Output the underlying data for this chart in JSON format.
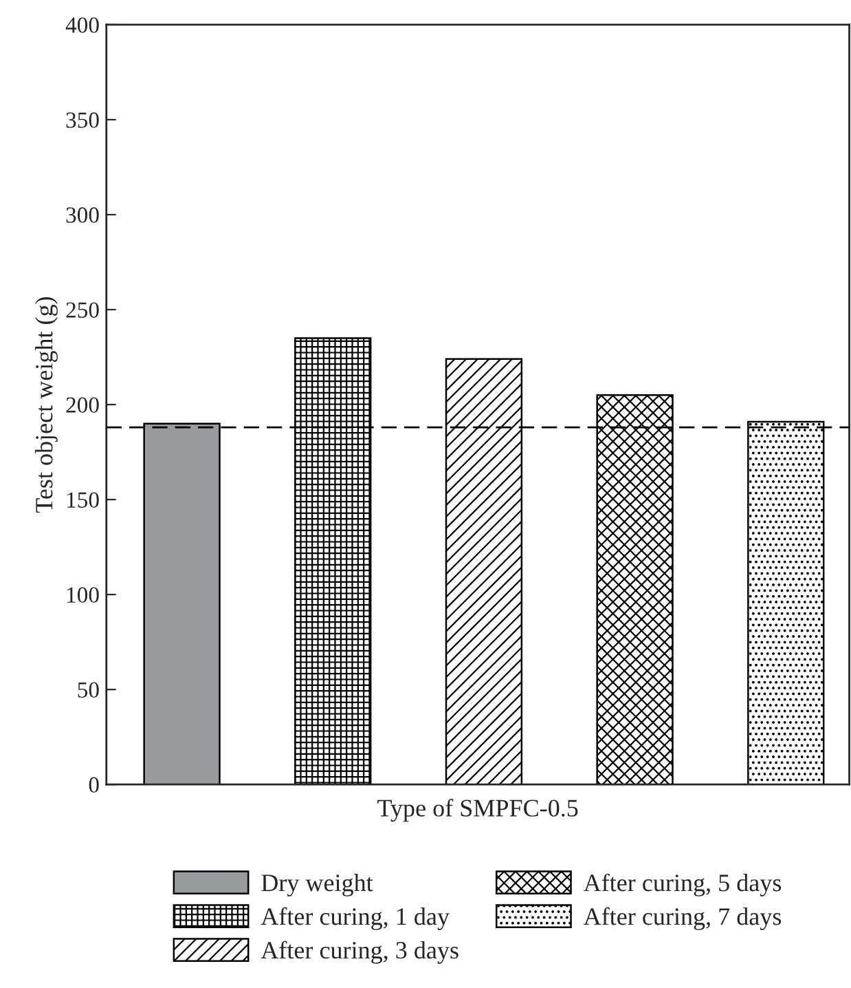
{
  "chart_data": {
    "type": "bar",
    "xlabel": "Type of SMPFC-0.5",
    "ylabel": "Test object weight (g)",
    "categories": [
      null,
      null,
      null,
      null,
      null
    ],
    "series": [
      {
        "name": "Dry weight",
        "color": "#999a9e",
        "values": [
          190,
          null,
          null,
          null,
          null
        ]
      },
      {
        "name": "After curing, 1 day",
        "color": "#000000",
        "values": [
          null,
          235,
          null,
          null,
          null
        ]
      },
      {
        "name": "After curing, 3 days",
        "color": "#000000",
        "values": [
          null,
          null,
          224,
          null,
          null
        ]
      },
      {
        "name": "After curing, 5 days",
        "color": "#000000",
        "values": [
          null,
          null,
          null,
          205,
          null
        ]
      },
      {
        "name": "After curing, 7 days",
        "color": "#000000",
        "values": [
          null,
          null,
          null,
          null,
          191
        ]
      }
    ],
    "ylim": [
      0,
      400
    ],
    "yticks": [
      0,
      50,
      100,
      150,
      200,
      250,
      300,
      350,
      400
    ],
    "ref_lines": [
      {
        "axis": "y",
        "value": 188,
        "line_style": "dashed",
        "color": "#000000"
      }
    ],
    "grid": false,
    "legend": "bottom"
  }
}
